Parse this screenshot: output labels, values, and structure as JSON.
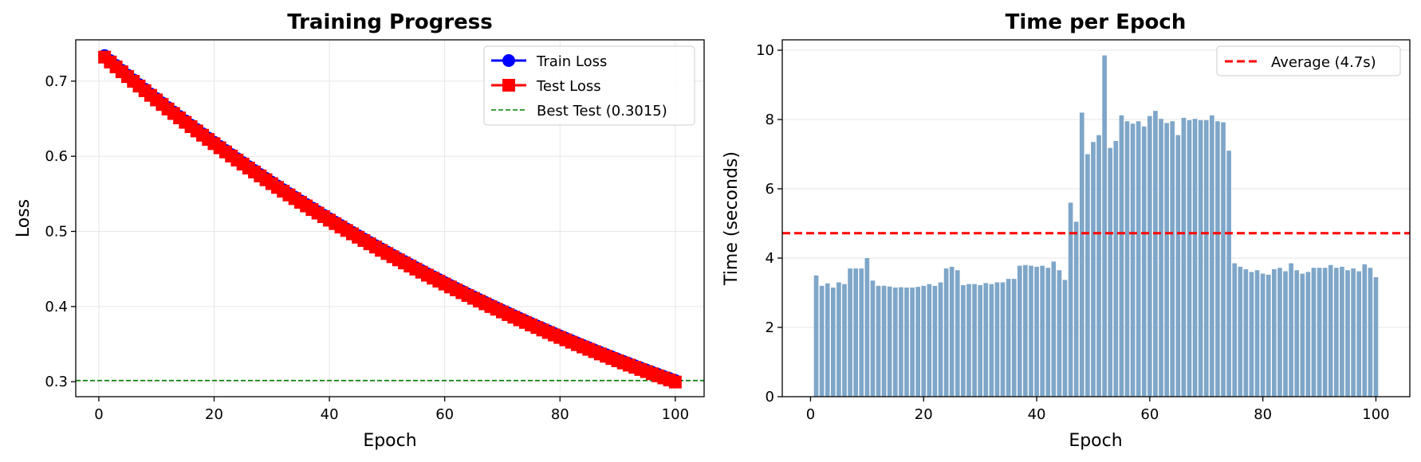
{
  "colors": {
    "train": "#0000ff",
    "test": "#ff0000",
    "best": "#008000",
    "bar": "#7ea6c9",
    "average": "#ff0000"
  },
  "chart_data": [
    {
      "type": "line",
      "title": "Training Progress",
      "xlabel": "Epoch",
      "ylabel": "Loss",
      "xlim": [
        -4,
        105
      ],
      "ylim": [
        0.28,
        0.755
      ],
      "xticks": [
        "0",
        "20",
        "40",
        "60",
        "80",
        "100"
      ],
      "yticks": [
        "0.3",
        "0.4",
        "0.5",
        "0.6",
        "0.7"
      ],
      "grid": true,
      "legend": "top-right",
      "loss_start": 0.734,
      "loss_end": 0.3015,
      "series": [
        {
          "name": "Train Loss",
          "marker": "circle",
          "x_range": [
            1,
            100
          ]
        },
        {
          "name": "Test Loss",
          "marker": "square",
          "x_range": [
            1,
            100
          ]
        }
      ],
      "best_test": {
        "label": "Best Test (0.3015)",
        "value": 0.3015
      }
    },
    {
      "type": "bar",
      "title": "Time per Epoch",
      "xlabel": "Epoch",
      "ylabel": "Time (seconds)",
      "xlim": [
        -5,
        106
      ],
      "ylim": [
        0,
        10.3
      ],
      "xticks": [
        "0",
        "20",
        "40",
        "60",
        "80",
        "100"
      ],
      "yticks": [
        "0",
        "2",
        "4",
        "6",
        "8",
        "10"
      ],
      "grid": true,
      "legend": "top-right",
      "x": [
        1,
        2,
        3,
        4,
        5,
        6,
        7,
        8,
        9,
        10,
        11,
        12,
        13,
        14,
        15,
        16,
        17,
        18,
        19,
        20,
        21,
        22,
        23,
        24,
        25,
        26,
        27,
        28,
        29,
        30,
        31,
        32,
        33,
        34,
        35,
        36,
        37,
        38,
        39,
        40,
        41,
        42,
        43,
        44,
        45,
        46,
        47,
        48,
        49,
        50,
        51,
        52,
        53,
        54,
        55,
        56,
        57,
        58,
        59,
        60,
        61,
        62,
        63,
        64,
        65,
        66,
        67,
        68,
        69,
        70,
        71,
        72,
        73,
        74,
        75,
        76,
        77,
        78,
        79,
        80,
        81,
        82,
        83,
        84,
        85,
        86,
        87,
        88,
        89,
        90,
        91,
        92,
        93,
        94,
        95,
        96,
        97,
        98,
        99,
        100
      ],
      "values": [
        3.5,
        3.2,
        3.27,
        3.15,
        3.3,
        3.25,
        3.7,
        3.7,
        3.7,
        4.0,
        3.35,
        3.2,
        3.2,
        3.18,
        3.15,
        3.16,
        3.15,
        3.15,
        3.17,
        3.2,
        3.25,
        3.2,
        3.3,
        3.7,
        3.75,
        3.65,
        3.22,
        3.25,
        3.25,
        3.22,
        3.28,
        3.25,
        3.3,
        3.3,
        3.4,
        3.4,
        3.78,
        3.8,
        3.78,
        3.75,
        3.78,
        3.72,
        3.9,
        3.65,
        3.37,
        5.6,
        5.05,
        8.2,
        7.0,
        7.35,
        7.55,
        9.85,
        7.18,
        7.38,
        8.12,
        7.95,
        7.88,
        7.95,
        7.8,
        8.1,
        8.25,
        8.02,
        7.9,
        7.95,
        7.55,
        8.05,
        7.98,
        8.02,
        7.98,
        7.98,
        8.12,
        7.95,
        7.92,
        7.1,
        3.85,
        3.75,
        3.68,
        3.6,
        3.65,
        3.55,
        3.52,
        3.68,
        3.72,
        3.62,
        3.85,
        3.65,
        3.55,
        3.6,
        3.72,
        3.72,
        3.72,
        3.8,
        3.72,
        3.75,
        3.65,
        3.7,
        3.62,
        3.82,
        3.72,
        3.45
      ],
      "average": {
        "label": "Average (4.7s)",
        "value": 4.72
      }
    }
  ]
}
